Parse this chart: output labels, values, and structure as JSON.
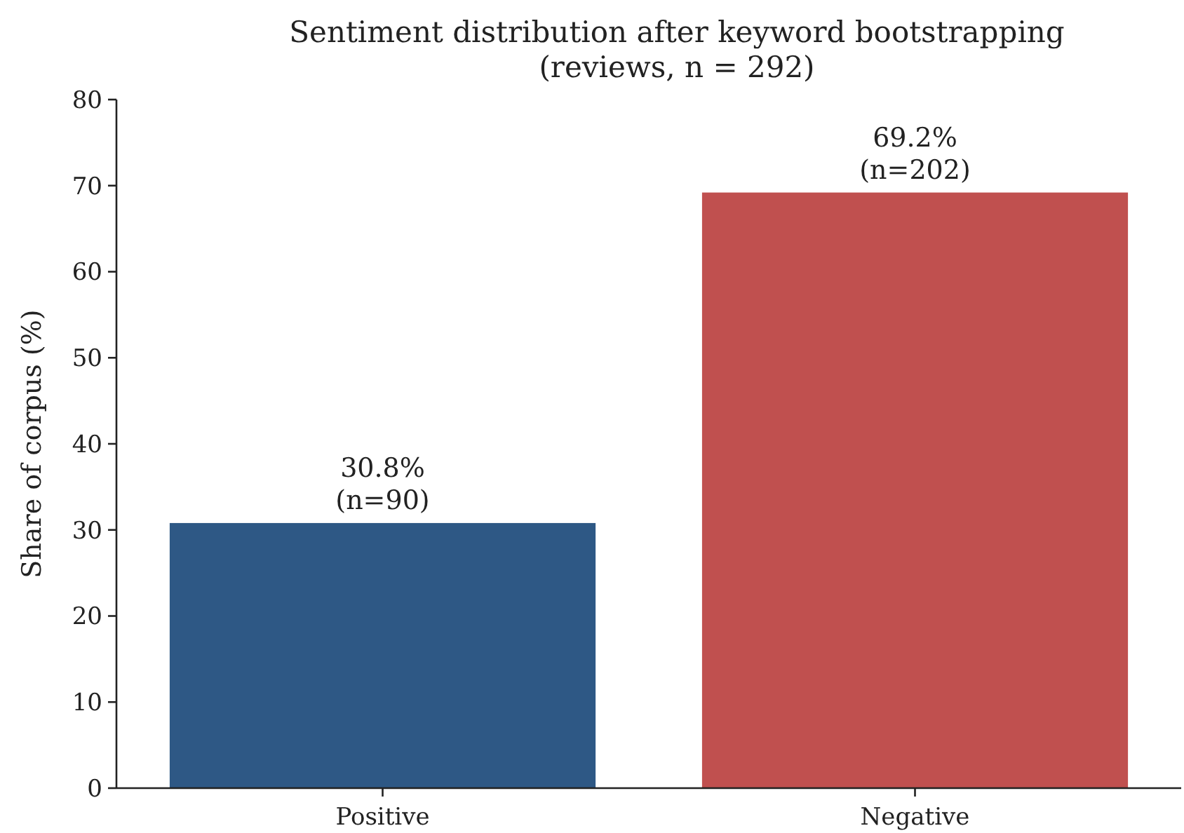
{
  "chart_data": {
    "type": "bar",
    "title": "Sentiment distribution after keyword bootstrapping\n(reviews, n = 292)",
    "ylabel": "Share of corpus (%)",
    "categories": [
      "Positive",
      "Negative"
    ],
    "values": [
      30.8,
      69.2
    ],
    "colors": [
      "#2e5885",
      "#c0504f"
    ],
    "value_labels": [
      "30.8%\n(n=90)",
      "69.2%\n(n=202)"
    ],
    "ylim": [
      0,
      80
    ],
    "yticks": [
      0,
      10,
      20,
      30,
      40,
      50,
      60,
      70,
      80
    ],
    "grid": false
  }
}
